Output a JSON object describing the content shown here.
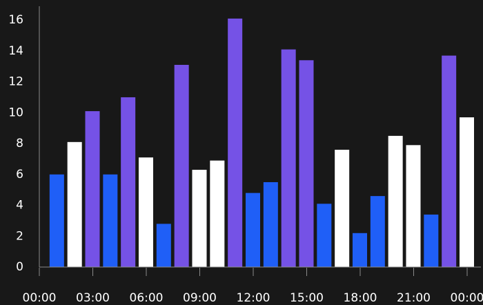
{
  "chart_data": {
    "type": "bar",
    "title": "",
    "xlabel": "",
    "ylabel": "",
    "ylim": [
      0,
      16.9
    ],
    "yticks": [
      0,
      2,
      4,
      6,
      8,
      10,
      12,
      14,
      16
    ],
    "xticks": [
      "00:00",
      "03:00",
      "06:00",
      "09:00",
      "12:00",
      "15:00",
      "18:00",
      "21:00",
      "00:00"
    ],
    "grid": false,
    "legend": "none",
    "colors": {
      "background": "#181818",
      "axis": "#8a8a8a",
      "text": "#ffffff",
      "blue": "#1f5ff7",
      "white": "#ffffff",
      "purple": "#7552e6"
    },
    "bars": [
      {
        "time": "01:00",
        "value": 6.0,
        "color": "blue"
      },
      {
        "time": "02:00",
        "value": 8.1,
        "color": "white"
      },
      {
        "time": "03:00",
        "value": 10.1,
        "color": "purple"
      },
      {
        "time": "04:00",
        "value": 6.0,
        "color": "blue"
      },
      {
        "time": "05:00",
        "value": 11.0,
        "color": "purple"
      },
      {
        "time": "06:00",
        "value": 7.1,
        "color": "white"
      },
      {
        "time": "07:00",
        "value": 2.8,
        "color": "blue"
      },
      {
        "time": "08:00",
        "value": 13.1,
        "color": "purple"
      },
      {
        "time": "09:00",
        "value": 6.3,
        "color": "white"
      },
      {
        "time": "10:00",
        "value": 6.9,
        "color": "white"
      },
      {
        "time": "11:00",
        "value": 16.1,
        "color": "purple"
      },
      {
        "time": "12:00",
        "value": 4.8,
        "color": "blue"
      },
      {
        "time": "13:00",
        "value": 5.5,
        "color": "blue"
      },
      {
        "time": "14:00",
        "value": 14.1,
        "color": "purple"
      },
      {
        "time": "15:00",
        "value": 13.4,
        "color": "purple"
      },
      {
        "time": "16:00",
        "value": 4.1,
        "color": "blue"
      },
      {
        "time": "17:00",
        "value": 7.6,
        "color": "white"
      },
      {
        "time": "18:00",
        "value": 2.2,
        "color": "blue"
      },
      {
        "time": "19:00",
        "value": 4.6,
        "color": "blue"
      },
      {
        "time": "20:00",
        "value": 8.5,
        "color": "white"
      },
      {
        "time": "21:00",
        "value": 7.9,
        "color": "white"
      },
      {
        "time": "22:00",
        "value": 3.4,
        "color": "blue"
      },
      {
        "time": "23:00",
        "value": 13.7,
        "color": "purple"
      },
      {
        "time": "00:00",
        "value": 9.7,
        "color": "white"
      }
    ]
  }
}
